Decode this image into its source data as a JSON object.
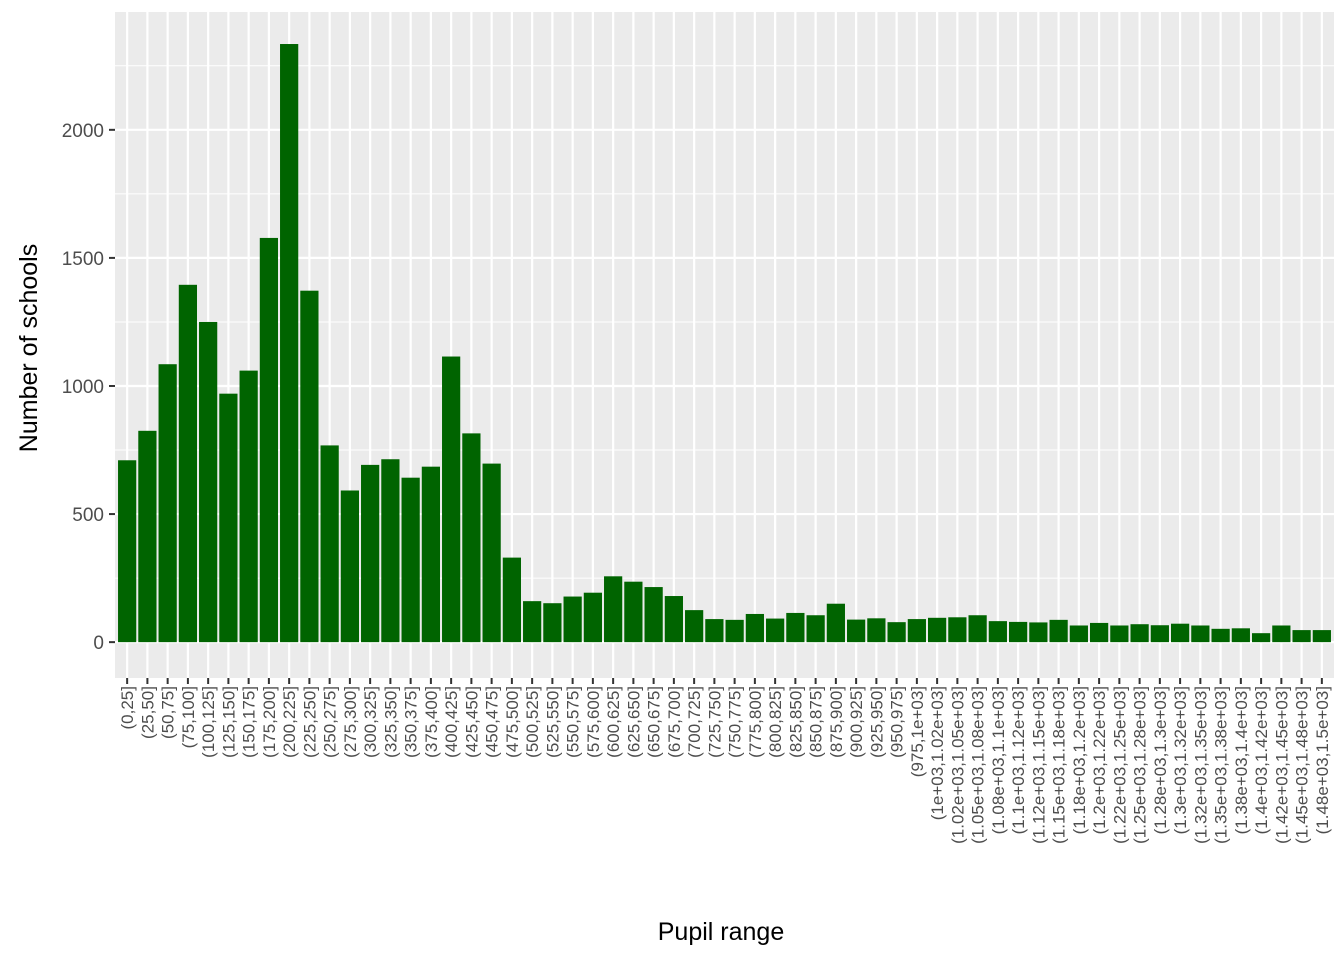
{
  "chart_data": {
    "type": "bar",
    "title": "",
    "xlabel": "Pupil range",
    "ylabel": "Number of schools",
    "ylim": [
      -140,
      2460
    ],
    "yticks": [
      0,
      500,
      1000,
      1500,
      2000
    ],
    "grid": true,
    "legend": "none",
    "colors": {
      "bar": "#006400",
      "panel": "#ebebeb",
      "grid": "#ffffff",
      "tick_text": "#4d4d4d",
      "title_text": "#000000"
    },
    "categories": [
      "(0,25]",
      "(25,50]",
      "(50,75]",
      "(75,100]",
      "(100,125]",
      "(125,150]",
      "(150,175]",
      "(175,200]",
      "(200,225]",
      "(225,250]",
      "(250,275]",
      "(275,300]",
      "(300,325]",
      "(325,350]",
      "(350,375]",
      "(375,400]",
      "(400,425]",
      "(425,450]",
      "(450,475]",
      "(475,500]",
      "(500,525]",
      "(525,550]",
      "(550,575]",
      "(575,600]",
      "(600,625]",
      "(625,650]",
      "(650,675]",
      "(675,700]",
      "(700,725]",
      "(725,750]",
      "(750,775]",
      "(775,800]",
      "(800,825]",
      "(825,850]",
      "(850,875]",
      "(875,900]",
      "(900,925]",
      "(925,950]",
      "(950,975]",
      "(975,1e+03]",
      "(1e+03,1.02e+03]",
      "(1.02e+03,1.05e+03]",
      "(1.05e+03,1.08e+03]",
      "(1.08e+03,1.1e+03]",
      "(1.1e+03,1.12e+03]",
      "(1.12e+03,1.15e+03]",
      "(1.15e+03,1.18e+03]",
      "(1.18e+03,1.2e+03]",
      "(1.2e+03,1.22e+03]",
      "(1.22e+03,1.25e+03]",
      "(1.25e+03,1.28e+03]",
      "(1.28e+03,1.3e+03]",
      "(1.3e+03,1.32e+03]",
      "(1.32e+03,1.35e+03]",
      "(1.35e+03,1.38e+03]",
      "(1.38e+03,1.4e+03]",
      "(1.4e+03,1.42e+03]",
      "(1.42e+03,1.45e+03]",
      "(1.45e+03,1.48e+03]",
      "(1.48e+03,1.5e+03]"
    ],
    "values": [
      710,
      825,
      1085,
      1395,
      1250,
      970,
      1060,
      1578,
      2335,
      1372,
      768,
      592,
      692,
      714,
      642,
      685,
      1115,
      815,
      697,
      330,
      160,
      152,
      178,
      193,
      257,
      236,
      215,
      180,
      125,
      90,
      87,
      110,
      92,
      114,
      105,
      150,
      88,
      93,
      78,
      90,
      95,
      97,
      105,
      82,
      79,
      77,
      87,
      65,
      75,
      65,
      70,
      66,
      72,
      65,
      52,
      54,
      35,
      65,
      47,
      47
    ]
  }
}
